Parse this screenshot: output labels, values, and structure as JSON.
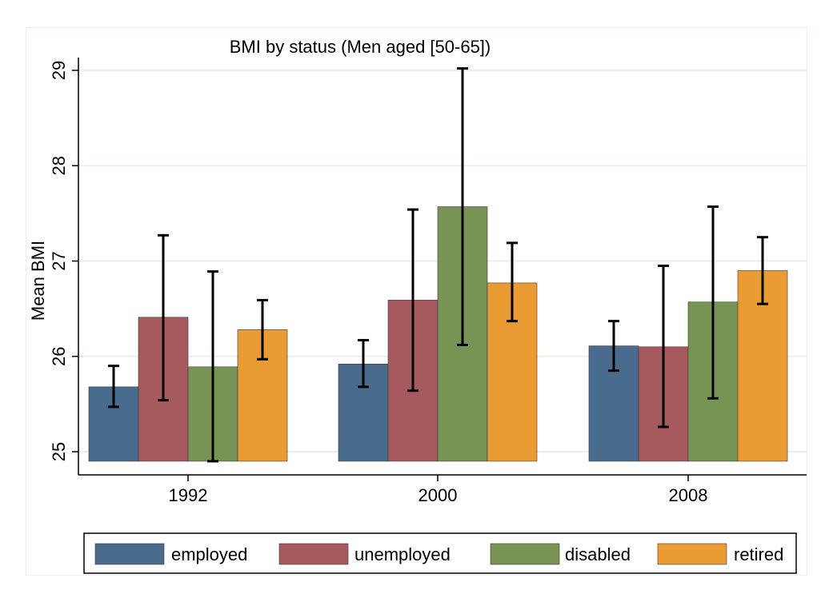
{
  "colors": {
    "employed": "#496c8e",
    "unemployed": "#a65a5e",
    "disabled": "#789455",
    "retired": "#ea9b33",
    "grid": "#e8eff3",
    "axis": "#000000",
    "errorbar": "#000000"
  },
  "chart_data": {
    "type": "bar",
    "title": "BMI by status (Men aged [50-65])",
    "ylabel": "Mean BMI",
    "xlabel": "",
    "ylim": [
      24.9,
      29.1
    ],
    "yticks": [
      "25",
      "26",
      "27",
      "28",
      "29"
    ],
    "categories": [
      "1992",
      "2000",
      "2008"
    ],
    "grid": true,
    "legend_position": "bottom",
    "series": [
      {
        "name": "employed",
        "values": [
          25.68,
          25.92,
          26.11
        ],
        "err_low": [
          25.47,
          25.68,
          25.85
        ],
        "err_high": [
          25.9,
          26.17,
          26.37
        ]
      },
      {
        "name": "unemployed",
        "values": [
          26.41,
          26.59,
          26.1
        ],
        "err_low": [
          25.54,
          25.64,
          25.26
        ],
        "err_high": [
          27.27,
          27.54,
          26.95
        ]
      },
      {
        "name": "disabled",
        "values": [
          25.89,
          27.57,
          26.57
        ],
        "err_low": [
          24.9,
          26.12,
          25.56
        ],
        "err_high": [
          26.89,
          29.02,
          27.57
        ]
      },
      {
        "name": "retired",
        "values": [
          26.28,
          26.77,
          26.9
        ],
        "err_low": [
          25.97,
          26.37,
          26.55
        ],
        "err_high": [
          26.59,
          27.19,
          27.25
        ]
      }
    ]
  }
}
